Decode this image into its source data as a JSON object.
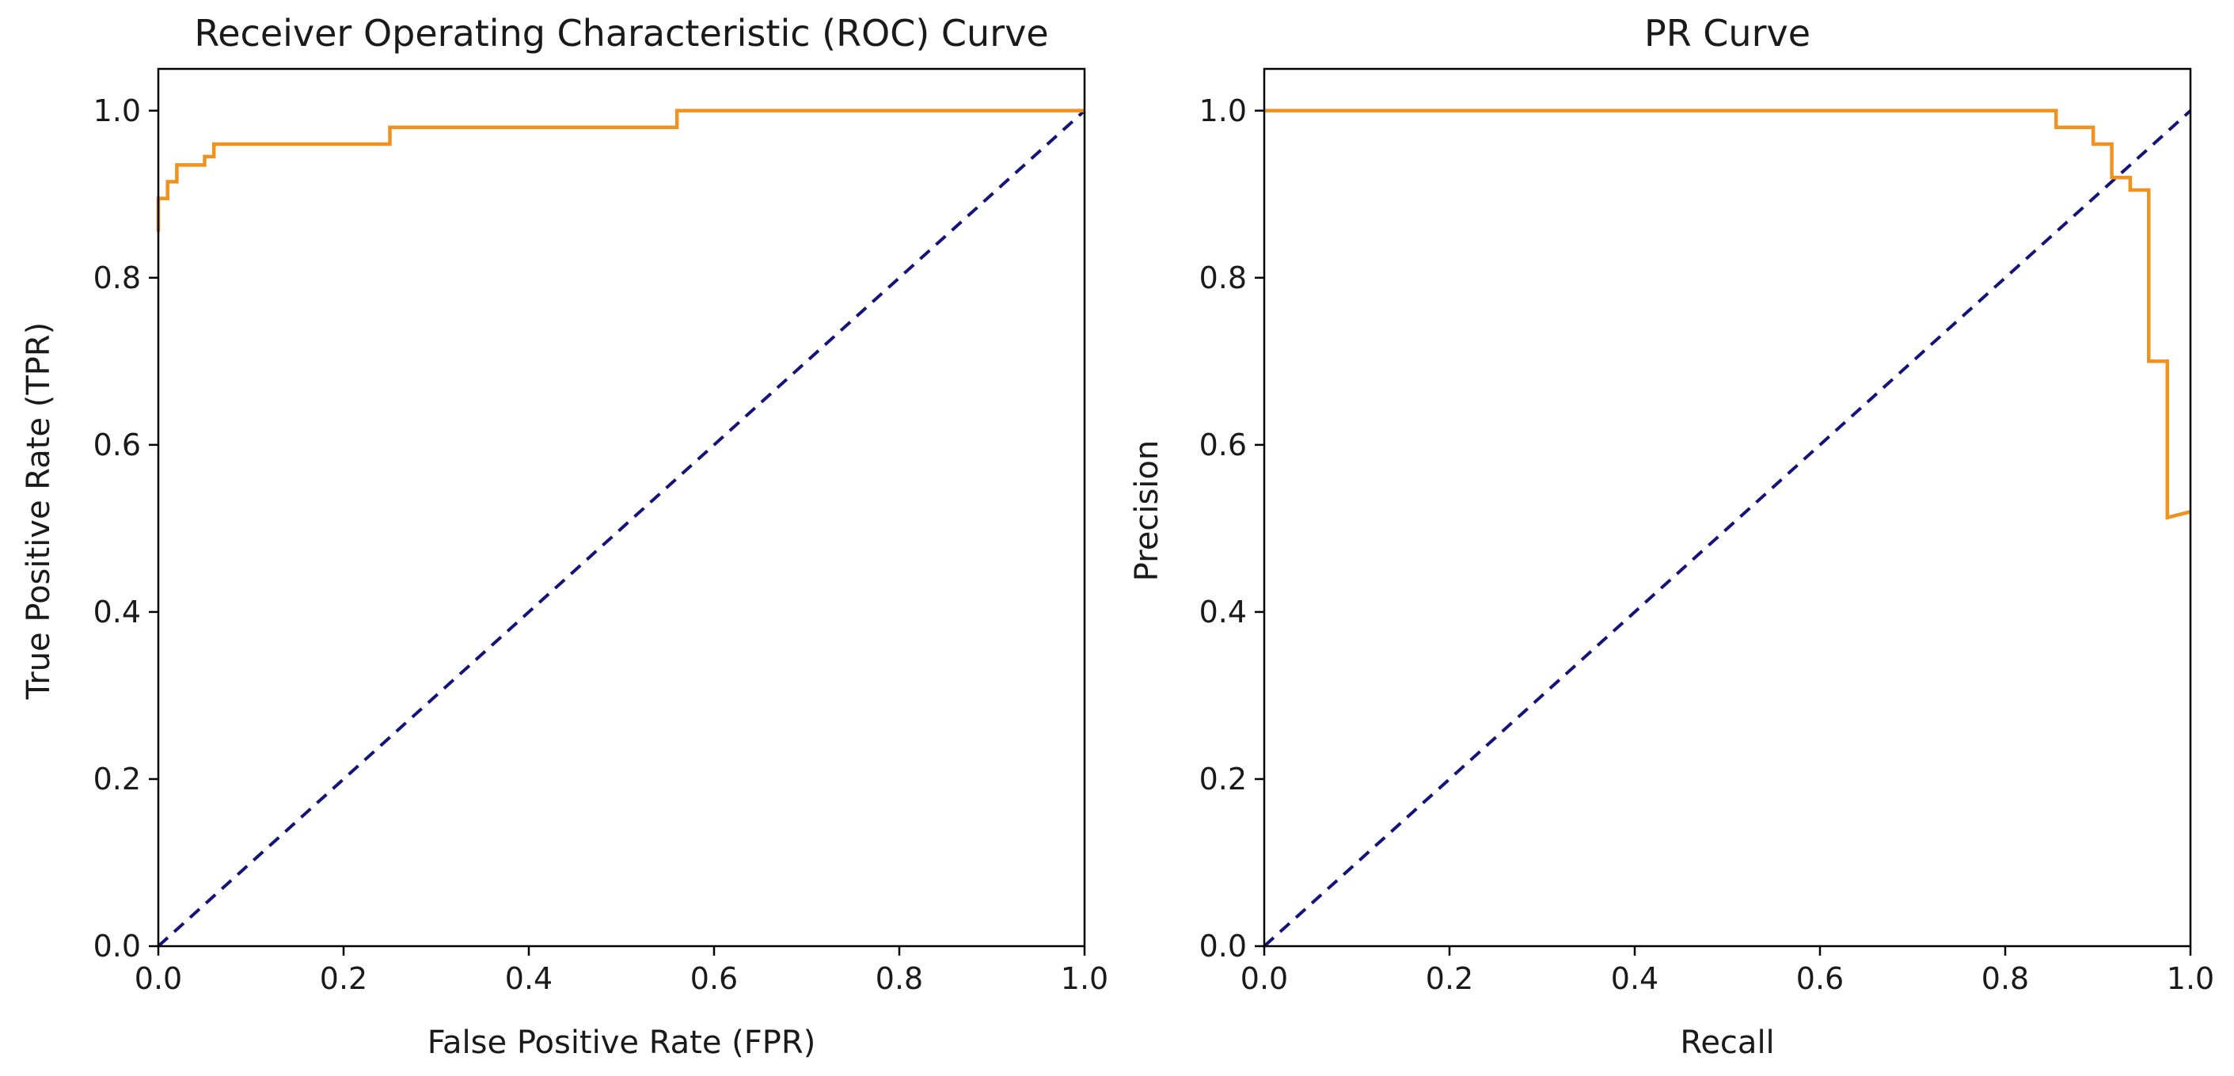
{
  "chart_data": [
    {
      "type": "line",
      "title": "Receiver Operating Characteristic (ROC) Curve",
      "xlabel": "False Positive Rate (FPR)",
      "ylabel": "True Positive Rate (TPR)",
      "xlim": [
        0,
        1
      ],
      "ylim": [
        0,
        1.05
      ],
      "grid": false,
      "xticks": [
        0,
        0.2,
        0.4,
        0.6,
        0.8,
        1
      ],
      "xtick_labels": [
        "0.0",
        "0.2",
        "0.4",
        "0.6",
        "0.8",
        "1.0"
      ],
      "yticks": [
        0,
        0.2,
        0.4,
        0.6,
        0.8,
        1
      ],
      "ytick_labels": [
        "0.0",
        "0.2",
        "0.4",
        "0.6",
        "0.8",
        "1.0"
      ],
      "series": [
        {
          "name": "roc-curve",
          "color": "#f0921e",
          "style": "solid",
          "step": true,
          "x": [
            0,
            0,
            0.01,
            0.01,
            0.02,
            0.02,
            0.05,
            0.05,
            0.06,
            0.06,
            0.25,
            0.25,
            0.56,
            0.56,
            1
          ],
          "y": [
            0.855,
            0.895,
            0.895,
            0.915,
            0.915,
            0.935,
            0.935,
            0.945,
            0.945,
            0.96,
            0.96,
            0.98,
            0.98,
            1,
            1
          ]
        },
        {
          "name": "chance-diagonal",
          "color": "#141478",
          "style": "dashed",
          "step": false,
          "x": [
            0,
            1
          ],
          "y": [
            0,
            1
          ]
        }
      ]
    },
    {
      "type": "line",
      "title": "PR Curve",
      "xlabel": "Recall",
      "ylabel": "Precision",
      "xlim": [
        0,
        1
      ],
      "ylim": [
        0,
        1.05
      ],
      "grid": false,
      "xticks": [
        0,
        0.2,
        0.4,
        0.6,
        0.8,
        1
      ],
      "xtick_labels": [
        "0.0",
        "0.2",
        "0.4",
        "0.6",
        "0.8",
        "1.0"
      ],
      "yticks": [
        0,
        0.2,
        0.4,
        0.6,
        0.8,
        1
      ],
      "ytick_labels": [
        "0.0",
        "0.2",
        "0.4",
        "0.6",
        "0.8",
        "1.0"
      ],
      "series": [
        {
          "name": "pr-curve",
          "color": "#f0921e",
          "style": "solid",
          "step": true,
          "x": [
            0,
            0.855,
            0.855,
            0.895,
            0.895,
            0.915,
            0.915,
            0.935,
            0.935,
            0.955,
            0.955,
            0.975,
            0.975,
            1
          ],
          "y": [
            1,
            1,
            0.98,
            0.98,
            0.96,
            0.96,
            0.92,
            0.92,
            0.905,
            0.905,
            0.7,
            0.7,
            0.513,
            0.52
          ]
        },
        {
          "name": "chance-diagonal",
          "color": "#141478",
          "style": "dashed",
          "step": false,
          "x": [
            0,
            1
          ],
          "y": [
            0,
            1
          ]
        }
      ]
    }
  ]
}
